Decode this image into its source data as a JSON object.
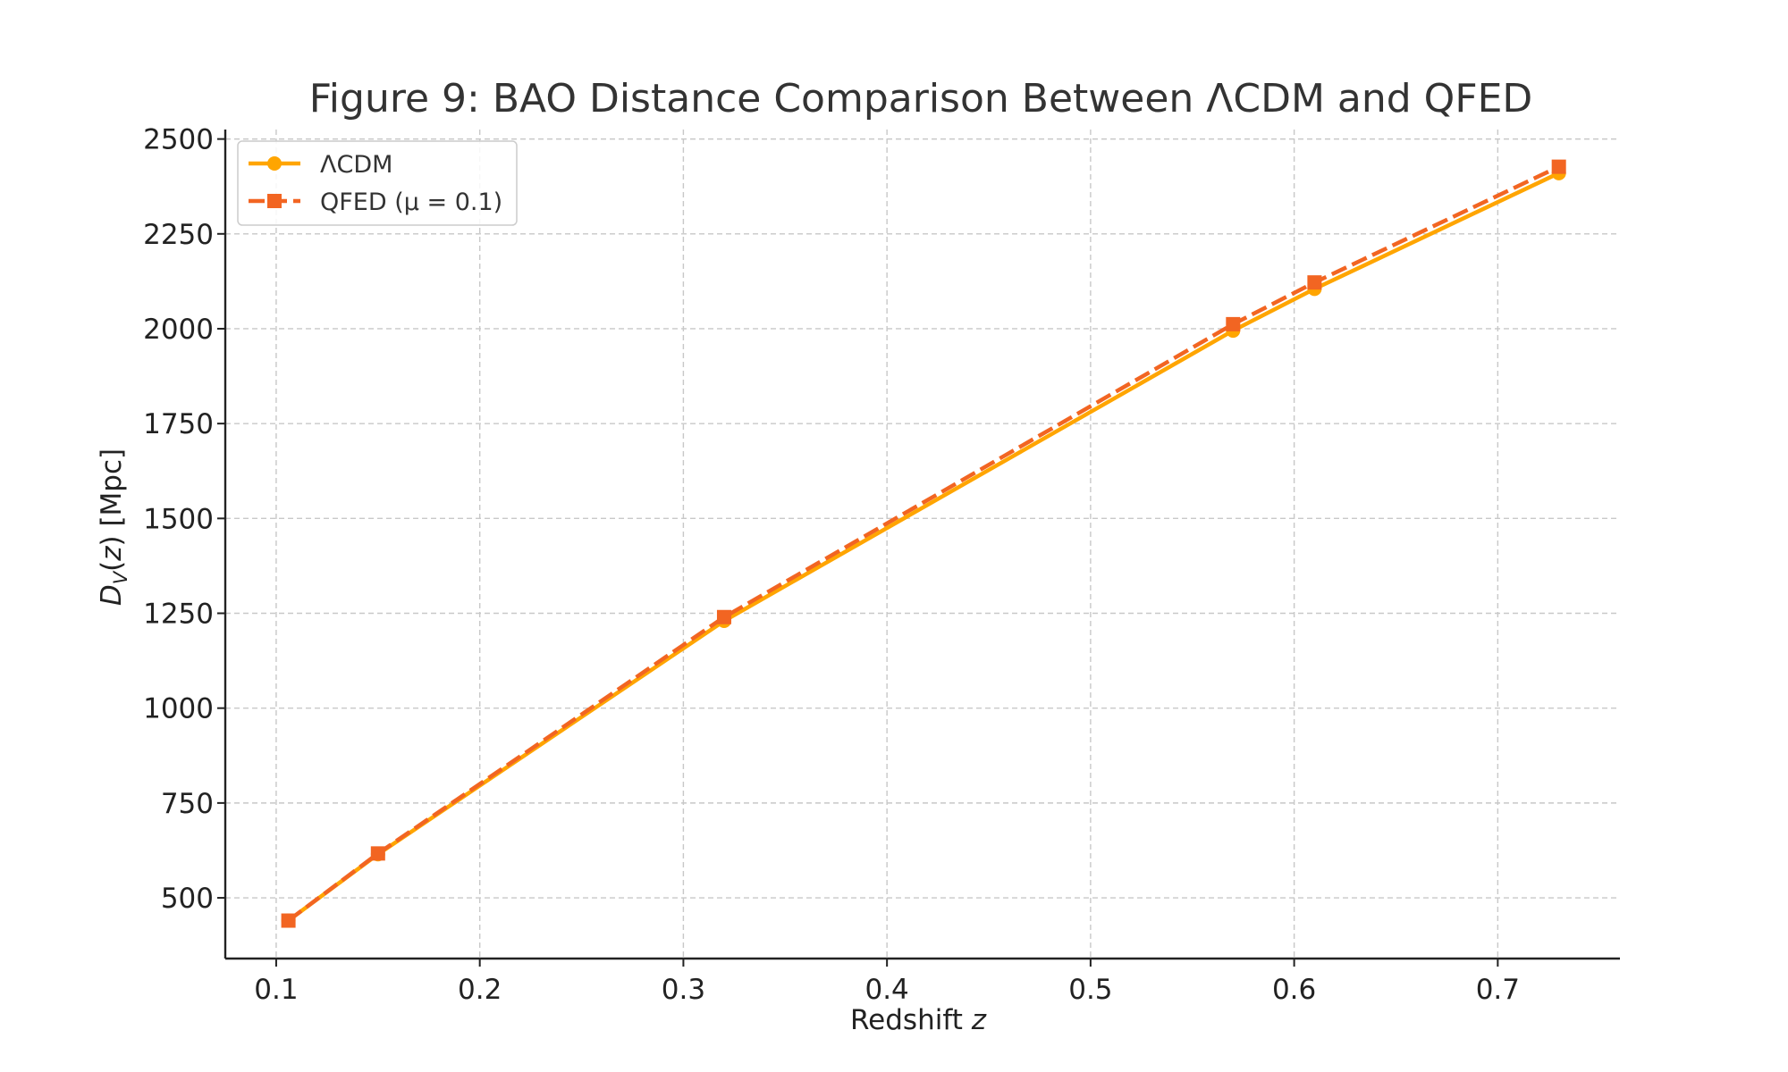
{
  "chart_data": {
    "type": "line",
    "title": "Figure 9: BAO Distance Comparison Between ΛCDM and QFED",
    "xlabel_main": "Redshift ",
    "xlabel_var": "z",
    "ylabel_parts": [
      "D",
      "V",
      "(",
      "z",
      ") [Mpc]"
    ],
    "xlim": [
      0.075,
      0.76
    ],
    "ylim": [
      340,
      2525
    ],
    "xticks": [
      0.1,
      0.2,
      0.3,
      0.4,
      0.5,
      0.6,
      0.7
    ],
    "xtick_labels": [
      "0.1",
      "0.2",
      "0.3",
      "0.4",
      "0.5",
      "0.6",
      "0.7"
    ],
    "yticks": [
      500,
      750,
      1000,
      1250,
      1500,
      1750,
      2000,
      2250,
      2500
    ],
    "ytick_labels": [
      "500",
      "750",
      "1000",
      "1250",
      "1500",
      "1750",
      "2000",
      "2250",
      "2500"
    ],
    "grid": true,
    "legend_position": "top-left",
    "x": [
      0.106,
      0.15,
      0.32,
      0.57,
      0.61,
      0.73
    ],
    "series": [
      {
        "name": "ΛCDM",
        "values": [
          440,
          615,
          1230,
          1995,
          2105,
          2410
        ],
        "color": "#FFA500",
        "style": "solid",
        "marker": "circle"
      },
      {
        "name": "QFED (μ = 0.1)",
        "values": [
          440,
          617,
          1240,
          2012,
          2122,
          2427
        ],
        "color": "#F26522",
        "style": "dashed",
        "marker": "square"
      }
    ]
  }
}
